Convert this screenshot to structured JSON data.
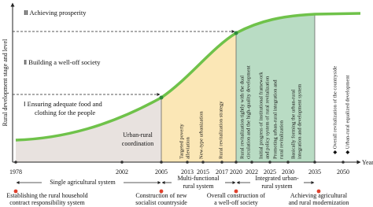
{
  "axis_label": "Rural development stage and level",
  "x_axis_label": "Year",
  "stages": [
    {
      "lines": [
        "Ⅲ Achieving prosperity"
      ]
    },
    {
      "lines": [
        "Ⅱ Building a well-off society"
      ]
    },
    {
      "lines": [
        "Ⅰ Ensuring adequate food and",
        "clothing for the people"
      ]
    }
  ],
  "years": [
    1978,
    2002,
    2005,
    2013,
    2015,
    2017,
    2020,
    2022,
    2025,
    2030,
    2035,
    2050
  ],
  "phases": [
    {
      "lines": [
        "Urban-rural",
        "coordination"
      ]
    },
    {
      "lines": [
        "Targeted poverty",
        "alleviation",
        "New-type urbanization",
        "Rural revitalization strategy"
      ]
    },
    {
      "lines": [
        "Rural revitalization tightly with the dual",
        "circulation and the high-quality development",
        "Initial progress of institutional framework",
        "and policy system of rural revitalization",
        "Promoting urban-rural integration and",
        "rural revitalization",
        "Basically forming the urban-rural",
        "integration and development system"
      ]
    },
    {
      "lines": [
        "◆ Overall revitalization of the countryside",
        "◆ Urban-rural equalized development"
      ]
    }
  ],
  "periods": [
    {
      "lines": [
        "Single agricultural system"
      ]
    },
    {
      "lines": [
        "Multi-functional",
        "rural system"
      ]
    },
    {
      "lines": [
        "Integrated urban-",
        "rural system"
      ]
    }
  ],
  "events": [
    {
      "lines": [
        "Establishing the rural household",
        "contract responsibility system"
      ]
    },
    {
      "lines": [
        "Construction of new",
        "socialist countryside"
      ]
    },
    {
      "lines": [
        "Overall construction of",
        "a well-off society"
      ]
    },
    {
      "lines": [
        "Achieving agricultural",
        "and rural modernization"
      ]
    }
  ]
}
